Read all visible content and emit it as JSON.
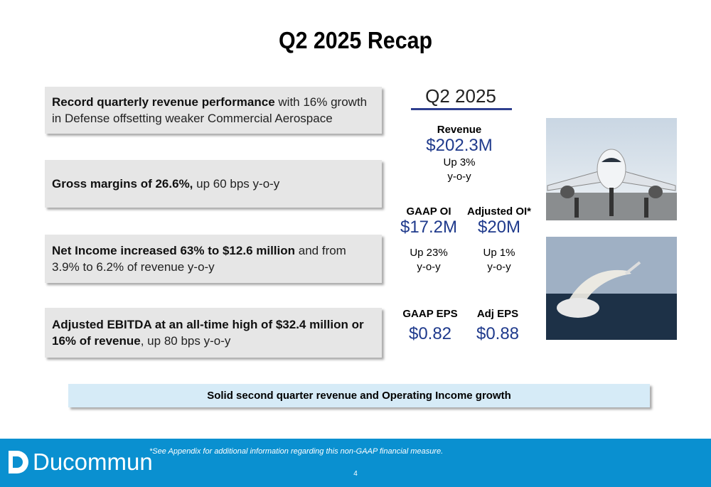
{
  "header": {
    "title": "Q2 2025 Recap"
  },
  "bullets": [
    {
      "bold": "Record quarterly revenue performance",
      "rest": " with 16% growth in Defense offsetting weaker Commercial Aerospace"
    },
    {
      "bold": "Gross margins of 26.6%,",
      "rest": " up 60 bps y-o-y"
    },
    {
      "bold": "Net Income increased 63% to $12.6 million",
      "rest": " and from 3.9% to 6.2% of revenue y-o-y"
    },
    {
      "bold": "Adjusted EBITDA at an all-time high of $32.4 million or 16% of revenue",
      "rest": ", up 80 bps y-o-y"
    }
  ],
  "metrics": {
    "heading": "Q2 2025",
    "items": [
      {
        "label": "Revenue",
        "value": "$202.3M",
        "change": [
          "Up 3%",
          "y-o-y"
        ]
      },
      {
        "label": "GAAP OI",
        "value": "$17.2M",
        "change": [
          "Up 23%",
          "y-o-y"
        ]
      },
      {
        "label": "Adjusted OI*",
        "value": "$20M",
        "change": [
          "Up 1%",
          "y-o-y"
        ]
      },
      {
        "label": "GAAP EPS",
        "value": "$0.82"
      },
      {
        "label": "Adj EPS",
        "value": "$0.88"
      }
    ]
  },
  "banner": "Solid second quarter revenue and Operating Income growth",
  "footer": {
    "logo": "Ducommun",
    "note": "*See Appendix for additional information regarding this non-GAAP financial measure.",
    "page": "4"
  }
}
